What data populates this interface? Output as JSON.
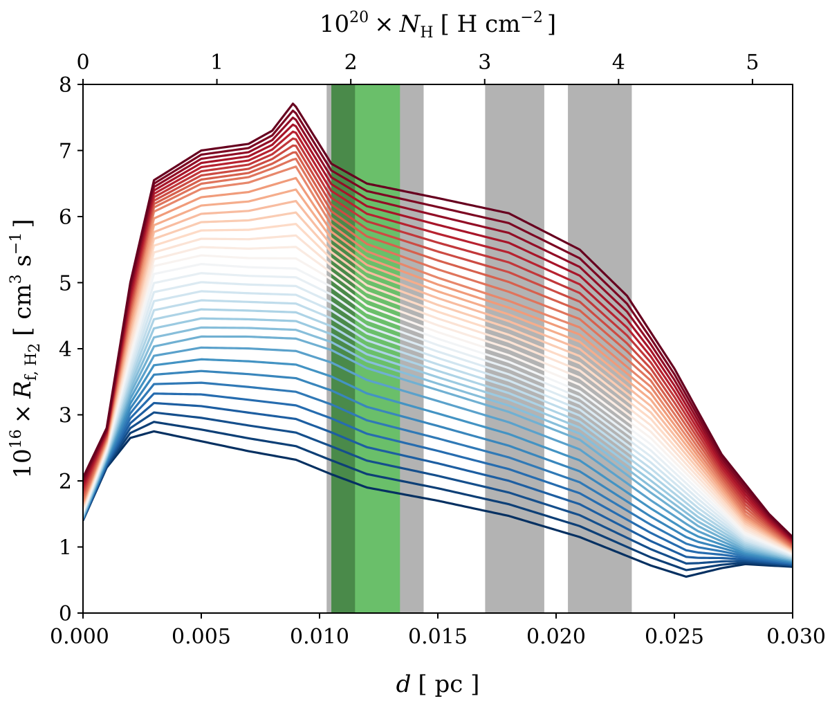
{
  "chart_data": {
    "type": "line",
    "xlabel": {
      "main": "d",
      "unit": "[ pc ]"
    },
    "top_xlabel": {
      "prefix": "10",
      "exp": "20",
      "times": "×",
      "var": "N",
      "sub": "H",
      "unit_open": "[ H cm",
      "unit_exp": "−2",
      "unit_close": "]"
    },
    "ylabel": {
      "prefix": "10",
      "exp": "16",
      "times": "×",
      "var": "R",
      "sub": "f, H",
      "sub2": "2",
      "unit_open": "[ cm",
      "unit_exp1": "3",
      "unit_mid": " s",
      "unit_exp2": "−1",
      "unit_close": "]"
    },
    "xlim": [
      0,
      0.03
    ],
    "ylim": [
      0,
      8
    ],
    "top_xlim": [
      0,
      5.3
    ],
    "x_ticks": [
      0.0,
      0.005,
      0.01,
      0.015,
      0.02,
      0.025,
      0.03
    ],
    "x_tick_labels": [
      "0.000",
      "0.005",
      "0.010",
      "0.015",
      "0.020",
      "0.025",
      "0.030"
    ],
    "y_ticks": [
      0,
      1,
      2,
      3,
      4,
      5,
      6,
      7,
      8
    ],
    "y_tick_labels": [
      "0",
      "1",
      "2",
      "3",
      "4",
      "5",
      "6",
      "7",
      "8"
    ],
    "top_ticks": [
      0,
      1,
      2,
      3,
      4,
      5
    ],
    "top_tick_labels": [
      "0",
      "1",
      "2",
      "3",
      "4",
      "5"
    ],
    "shaded_regions": [
      {
        "x0": 0.0103,
        "x1": 0.0144,
        "color": "#b3b3b3"
      },
      {
        "x0": 0.017,
        "x1": 0.0195,
        "color": "#b3b3b3"
      },
      {
        "x0": 0.0205,
        "x1": 0.0232,
        "color": "#b3b3b3"
      },
      {
        "x0": 0.0105,
        "x1": 0.0134,
        "color": "#6abf6a"
      },
      {
        "x0": 0.0105,
        "x1": 0.0115,
        "color": "#4a8a4a"
      }
    ],
    "series": [
      {
        "name": "curve-1",
        "color": "#0a3067",
        "x": [
          0,
          0.001,
          0.002,
          0.003,
          0.005,
          0.007,
          0.009,
          0.0105,
          0.012,
          0.015,
          0.018,
          0.021,
          0.024,
          0.0255,
          0.027,
          0.028,
          0.03
        ],
        "y": [
          1.4,
          2.2,
          2.65,
          2.75,
          2.6,
          2.45,
          2.32,
          2.1,
          1.9,
          1.7,
          1.47,
          1.15,
          0.72,
          0.55,
          0.68,
          0.74,
          0.7
        ]
      },
      {
        "name": "curve-12",
        "color": "#92c5de",
        "x": [
          0,
          0.001,
          0.002,
          0.003,
          0.005,
          0.007,
          0.009,
          0.0105,
          0.012,
          0.015,
          0.018,
          0.021,
          0.024,
          0.026,
          0.028,
          0.03
        ],
        "y": [
          1.45,
          2.35,
          3.3,
          4.0,
          4.15,
          4.15,
          4.12,
          3.95,
          3.68,
          3.35,
          3.02,
          2.6,
          1.8,
          1.3,
          0.95,
          0.8
        ]
      },
      {
        "name": "curve-20",
        "color": "#f7f7f7",
        "x": [
          0,
          0.001,
          0.002,
          0.003,
          0.005,
          0.007,
          0.009,
          0.0105,
          0.012,
          0.015,
          0.018,
          0.021,
          0.024,
          0.026,
          0.028,
          0.03
        ],
        "y": [
          1.55,
          2.5,
          3.9,
          5.2,
          5.35,
          5.3,
          5.28,
          5.0,
          4.6,
          4.2,
          3.85,
          3.4,
          2.6,
          1.9,
          1.2,
          0.9
        ]
      },
      {
        "name": "curve-28",
        "color": "#f4a582",
        "x": [
          0,
          0.001,
          0.002,
          0.003,
          0.005,
          0.007,
          0.009,
          0.0105,
          0.012,
          0.015,
          0.018,
          0.021,
          0.024,
          0.026,
          0.028,
          0.03
        ],
        "y": [
          1.7,
          2.65,
          4.5,
          6.1,
          6.45,
          6.55,
          6.8,
          5.9,
          5.5,
          5.1,
          4.75,
          4.35,
          3.45,
          2.45,
          1.5,
          1.0
        ]
      },
      {
        "name": "curve-36",
        "color": "#67001f",
        "x": [
          0,
          0.001,
          0.002,
          0.003,
          0.005,
          0.007,
          0.008,
          0.0089,
          0.0105,
          0.012,
          0.015,
          0.018,
          0.021,
          0.023,
          0.025,
          0.027,
          0.029,
          0.03
        ],
        "y": [
          2.05,
          2.8,
          5.0,
          6.55,
          7.0,
          7.1,
          7.3,
          7.72,
          6.8,
          6.5,
          6.28,
          6.05,
          5.5,
          4.8,
          3.7,
          2.4,
          1.5,
          1.15
        ]
      }
    ],
    "n_curves": 36,
    "colormap": "RdBu_r"
  }
}
